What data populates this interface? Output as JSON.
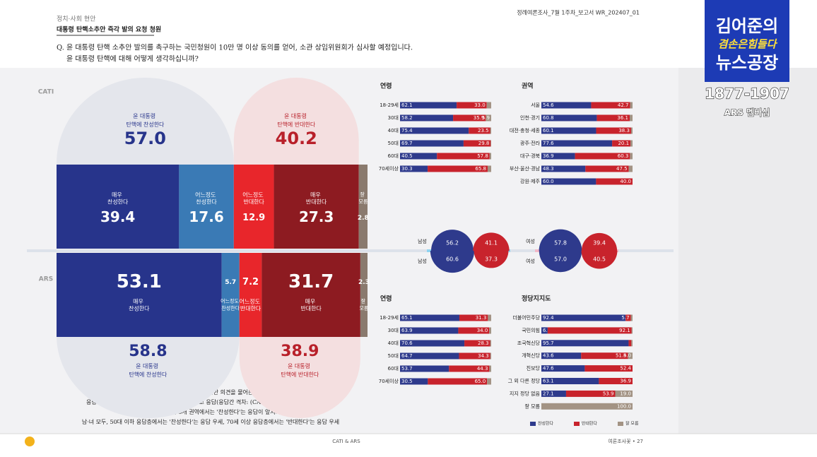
{
  "header": {
    "section": "정치·사회 현안",
    "title": "대통령 탄핵소추안 즉각 발의 요청 청원",
    "report": "정례여론조사_7월 1주차_보고서   WR_202407_01"
  },
  "question": [
    "Q. 윤 대통령 탄핵 소추안 발의를 촉구하는 국민청원이 10만 명 이상 동의를 얻어, 소관 상임위원회가 심사할 예정입니다.",
    "윤 대통령 탄핵에 대해 어떻게 생각하십니까?"
  ],
  "logo": {
    "lines": [
      "김어준의",
      "겸손은힘들다",
      "뉴스공장"
    ],
    "phone": "1877-1907",
    "membership": "ARS 멤버십"
  },
  "notes": [
    "윤 대통령 탄핵에 대한 찬반 의견을 물어본 결과,",
    "응답자 절반 이상은 '윤 대통령 탄핵에 찬성한다'고 응답(응답간 격차: (CATI: 16.8%p, ARS: 19.9%p)",
    "TK권을 제외한 나머지 6개 권역에서는 '찬성한다'는 응답이 앞서거나 우세",
    "남·녀 모두, 50대 이하 응답층에서는 '찬성한다'는 응답 우세, 70세 이상 응답층에서는 '반대한다'는 응답 우세"
  ],
  "footer": {
    "center": "CATI & ARS",
    "right": "여론조사꽃 • 27"
  },
  "chart_data": [
    {
      "type": "stacked_bar",
      "rows": [
        "CATI",
        "ARS"
      ],
      "xlim": [
        0,
        100
      ],
      "series": [
        {
          "name": "매우 찬성한다",
          "color": "#27348b",
          "values": [
            39.4,
            53.1
          ]
        },
        {
          "name": "어느정도 찬성한다",
          "color": "#3a7ab5",
          "values": [
            17.6,
            5.7
          ]
        },
        {
          "name": "어느정도 반대한다",
          "color": "#e8262b",
          "values": [
            12.9,
            7.2
          ]
        },
        {
          "name": "매우 반대한다",
          "color": "#8d1b21",
          "values": [
            27.3,
            31.7
          ]
        },
        {
          "name": "잘 모름",
          "color": "#8a7a6e",
          "values": [
            2.8,
            2.3
          ]
        }
      ],
      "totals": [
        {
          "name": "윤 대통령 탄핵에 찬성한다",
          "color": "#27348b",
          "values": [
            57.0,
            58.8
          ],
          "value_labels": [
            "57.0",
            "58.8"
          ]
        },
        {
          "name": "윤 대통령 탄핵에 반대한다",
          "color": "#b8202a",
          "values": [
            40.2,
            38.9
          ]
        }
      ]
    },
    {
      "type": "hbar_stacked",
      "title": "연령",
      "categories": [
        "18-29세",
        "30대",
        "40대",
        "50대",
        "60대",
        "70세이상"
      ],
      "xlim": [
        0,
        100
      ],
      "series": [
        {
          "color": "#2e3a8c",
          "values": [
            62.1,
            58.2,
            75.4,
            69.7,
            40.5,
            30.3
          ],
          "value_labels": [
            "62.1",
            "58.2",
            "75.4",
            "69.7",
            "40.5",
            "30.3"
          ]
        },
        {
          "color": "#c8232c",
          "values": [
            33.0,
            35.9,
            23.5,
            29.8,
            57.8,
            65.8
          ],
          "value_labels": [
            "33.0",
            "35.9",
            "23.5",
            "29.8",
            "57.8",
            "65.8"
          ]
        },
        {
          "color": "#a39384",
          "values": [
            4.9,
            5.9,
            1.1,
            0.5,
            1.7,
            3.9
          ],
          "value_labels": [
            null,
            "5.9",
            null,
            null,
            null,
            null
          ]
        }
      ]
    },
    {
      "type": "hbar_stacked",
      "title": "권역",
      "categories": [
        "서울",
        "인천·경기",
        "대전·충청·세종",
        "광주·전라",
        "대구·경북",
        "부산·울산·경남",
        "강원·제주"
      ],
      "xlim": [
        0,
        100
      ],
      "series": [
        {
          "color": "#2e3a8c",
          "values": [
            54.6,
            60.8,
            60.1,
            77.6,
            36.9,
            48.3,
            60.0
          ],
          "value_labels": [
            "54.6",
            "60.8",
            "60.1",
            "77.6",
            "36.9",
            "48.3",
            "60.0"
          ]
        },
        {
          "color": "#c8232c",
          "values": [
            42.7,
            36.1,
            38.3,
            20.1,
            60.3,
            47.5,
            40.0
          ],
          "value_labels": [
            "42.7",
            "36.1",
            "38.3",
            "20.1",
            "60.3",
            "47.5",
            "40.0"
          ]
        },
        {
          "color": "#a39384",
          "values": [
            2.7,
            3.1,
            1.6,
            2.3,
            2.8,
            4.2,
            0
          ],
          "value_labels": [
            null,
            null,
            null,
            null,
            null,
            null,
            null
          ]
        }
      ]
    },
    {
      "type": "bubble",
      "categories": [
        "남성",
        "여성"
      ],
      "series": [
        {
          "color": "#2e3a8c",
          "cati": [
            56.2,
            57.8
          ],
          "ars": [
            60.6,
            57.0
          ],
          "ars_labels": [
            "60.6",
            "57.0"
          ]
        },
        {
          "color": "#c8232c",
          "cati": [
            41.1,
            39.4
          ],
          "ars": [
            37.3,
            40.5
          ]
        }
      ]
    },
    {
      "type": "hbar_stacked",
      "title": "연령",
      "categories": [
        "18-29세",
        "30대",
        "40대",
        "50대",
        "60대",
        "70세이상"
      ],
      "xlim": [
        0,
        100
      ],
      "series": [
        {
          "color": "#2e3a8c",
          "values": [
            65.1,
            63.9,
            70.6,
            64.7,
            53.7,
            30.5
          ],
          "value_labels": [
            "65.1",
            "63.9",
            "70.6",
            "64.7",
            "53.7",
            "30.5"
          ]
        },
        {
          "color": "#c8232c",
          "values": [
            31.3,
            34.0,
            28.3,
            34.3,
            44.3,
            65.0
          ],
          "value_labels": [
            "31.3",
            "34.0",
            "28.3",
            "34.3",
            "44.3",
            "65.0"
          ]
        },
        {
          "color": "#a39384",
          "values": [
            3.6,
            2.1,
            1.1,
            1.0,
            2.0,
            4.5
          ],
          "value_labels": [
            null,
            null,
            null,
            null,
            null,
            null
          ]
        }
      ]
    },
    {
      "type": "hbar_stacked",
      "title": "정당지지도",
      "categories": [
        "더불어민주당",
        "국민의힘",
        "조국혁신당",
        "개혁신당",
        "진보당",
        "그 외 다른 정당",
        "지지 정당 없음",
        "잘 모름"
      ],
      "xlim": [
        0,
        100
      ],
      "series": [
        {
          "name": "찬성한다",
          "color": "#2e3a8c",
          "values": [
            92.4,
            6.9,
            95.7,
            43.6,
            47.6,
            63.1,
            27.1,
            0
          ],
          "value_labels": [
            "92.4",
            "6.9",
            "95.7",
            "43.6",
            "47.6",
            "63.1",
            "27.1",
            null
          ]
        },
        {
          "name": "반대한다",
          "color": "#c8232c",
          "values": [
            5.7,
            92.1,
            3.0,
            51.4,
            52.4,
            36.9,
            53.9,
            0
          ],
          "value_labels": [
            "5.7",
            "92.1",
            null,
            "51.4",
            "52.4",
            "36.9",
            "53.9",
            null
          ]
        },
        {
          "name": "잘 모름",
          "color": "#a39384",
          "values": [
            1.9,
            1.0,
            1.3,
            5.0,
            0,
            0,
            19.0,
            100.0
          ],
          "value_labels": [
            null,
            null,
            null,
            "5.0",
            null,
            null,
            "19.0",
            "100.0"
          ]
        }
      ]
    }
  ]
}
